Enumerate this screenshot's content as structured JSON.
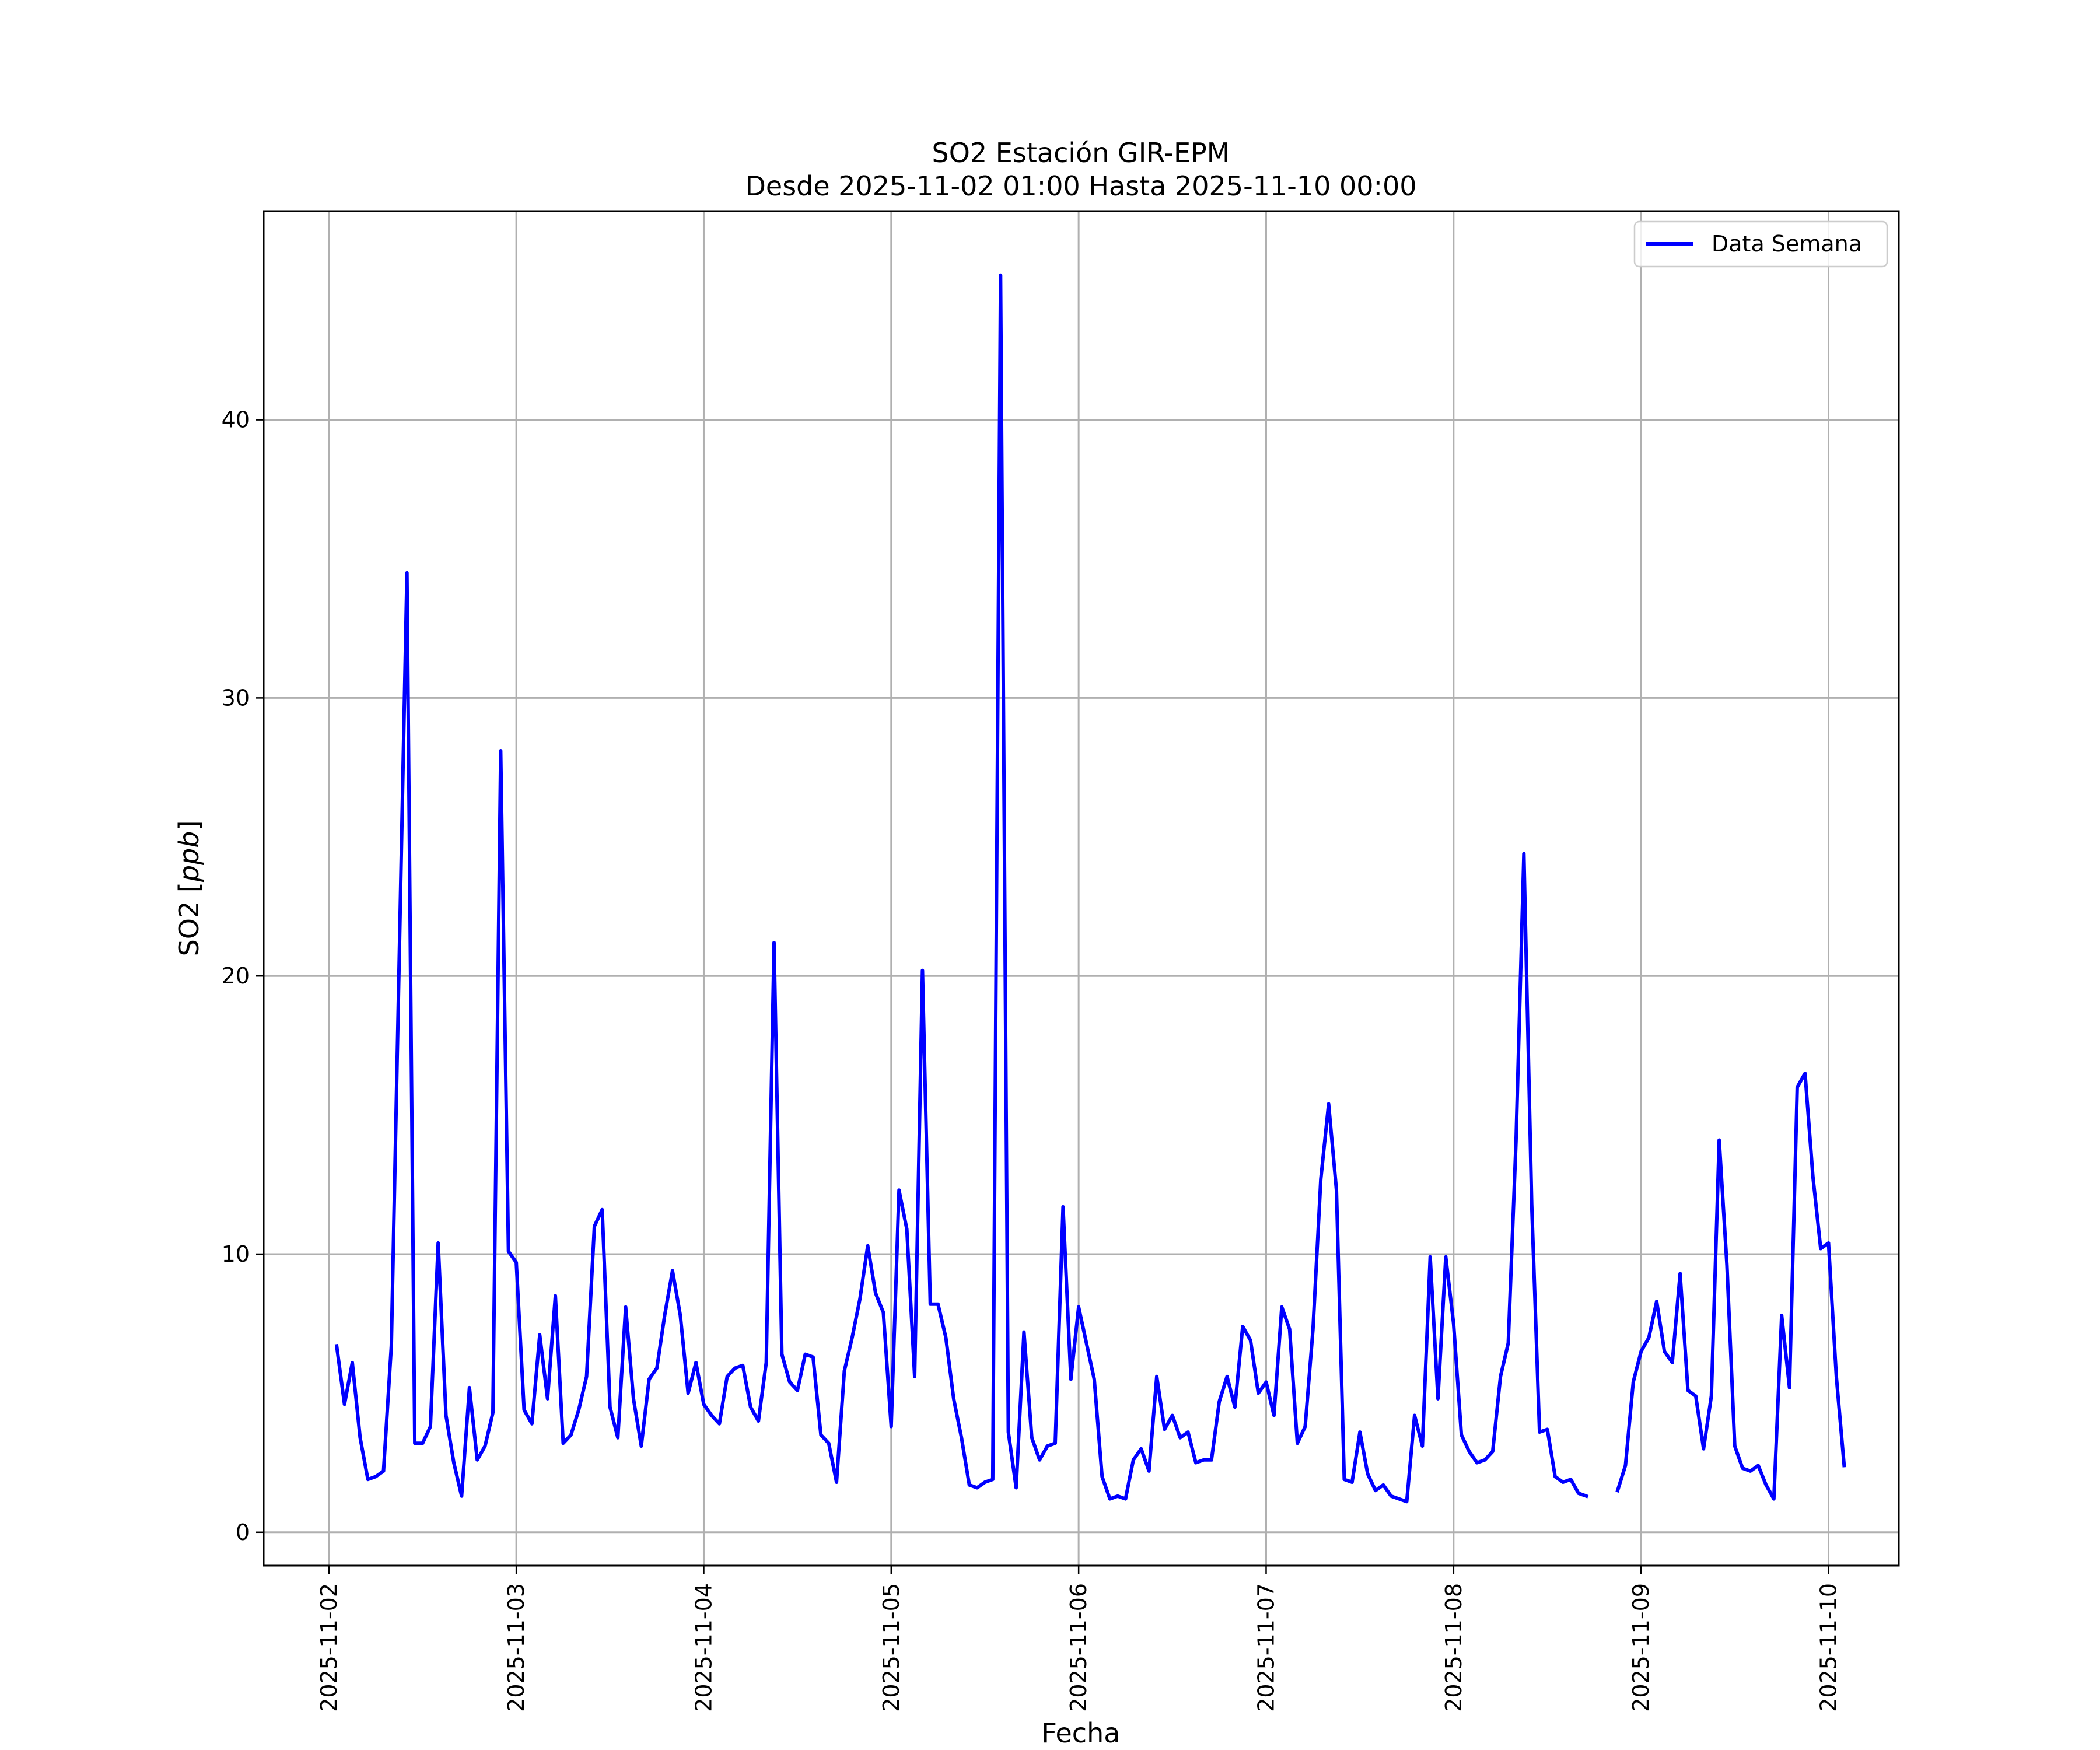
{
  "chart_data": {
    "type": "line",
    "title": "SO2 Estación GIR-EPM",
    "subtitle": "Desde 2025-11-02 01:00 Hasta 2025-11-10 00:00",
    "xlabel": "Fecha",
    "ylabel": "SO2 [ppb]",
    "ylabel_prefix": "SO2 [",
    "ylabel_unit": "ppb",
    "ylabel_suffix": "]",
    "xlim": [
      "2025-11-01 15:39",
      "2025-11-10 09:00"
    ],
    "ylim": [
      -1.2,
      47.5
    ],
    "x_ticks": [
      "2025-11-02",
      "2025-11-03",
      "2025-11-04",
      "2025-11-05",
      "2025-11-06",
      "2025-11-07",
      "2025-11-08",
      "2025-11-09",
      "2025-11-10"
    ],
    "y_ticks": [
      0,
      10,
      20,
      30,
      40
    ],
    "grid": true,
    "legend_position": "top-right",
    "series": [
      {
        "name": "Data Semana",
        "color": "#0000ff",
        "start": "2025-11-02 01:00",
        "interval_hours": 1,
        "values": [
          6.7,
          4.6,
          6.1,
          3.4,
          1.9,
          2.0,
          2.2,
          6.7,
          20.5,
          34.5,
          3.2,
          3.2,
          3.8,
          10.4,
          4.2,
          2.5,
          1.3,
          5.2,
          2.6,
          3.1,
          4.3,
          28.1,
          10.1,
          9.7,
          4.4,
          3.9,
          7.1,
          4.8,
          8.5,
          3.2,
          3.5,
          4.4,
          5.6,
          11.0,
          11.6,
          4.5,
          3.4,
          8.1,
          4.8,
          3.1,
          5.5,
          5.9,
          7.8,
          9.4,
          7.8,
          5.0,
          6.1,
          4.6,
          4.2,
          3.9,
          5.6,
          5.9,
          6.0,
          4.5,
          4.0,
          6.1,
          21.2,
          6.4,
          5.4,
          5.1,
          6.4,
          6.3,
          3.5,
          3.2,
          1.8,
          5.8,
          7.0,
          8.4,
          10.3,
          8.6,
          7.9,
          3.8,
          12.3,
          10.9,
          5.6,
          20.2,
          8.2,
          8.2,
          7.0,
          4.8,
          3.4,
          1.7,
          1.6,
          1.8,
          1.9,
          45.2,
          3.6,
          1.6,
          7.2,
          3.4,
          2.6,
          3.1,
          3.2,
          11.7,
          5.5,
          8.1,
          6.8,
          5.5,
          2.0,
          1.2,
          1.3,
          1.2,
          2.6,
          3.0,
          2.2,
          5.6,
          3.7,
          4.2,
          3.4,
          3.6,
          2.5,
          2.6,
          2.6,
          4.7,
          5.6,
          4.5,
          7.4,
          6.9,
          5.0,
          5.4,
          4.2,
          8.1,
          7.3,
          3.2,
          3.8,
          7.3,
          12.7,
          15.4,
          12.3,
          1.9,
          1.8,
          3.6,
          2.1,
          1.5,
          1.7,
          1.3,
          1.2,
          1.1,
          4.2,
          3.1,
          9.9,
          4.8,
          9.9,
          7.5,
          3.5,
          2.9,
          2.5,
          2.6,
          2.9,
          5.6,
          6.8,
          14.1,
          24.4,
          11.8,
          3.6,
          3.7,
          2.0,
          1.8,
          1.9,
          1.4,
          1.3,
          null,
          null,
          null,
          1.5,
          2.4,
          5.4,
          6.5,
          7.0,
          8.3,
          6.5,
          6.1,
          9.3,
          5.1,
          4.9,
          3.0,
          4.9,
          14.1,
          9.6,
          3.1,
          2.3,
          2.2,
          2.4,
          1.7,
          1.2,
          7.8,
          5.2,
          16.0,
          16.5,
          12.8,
          10.2,
          10.4,
          5.6,
          2.4
        ]
      }
    ]
  }
}
